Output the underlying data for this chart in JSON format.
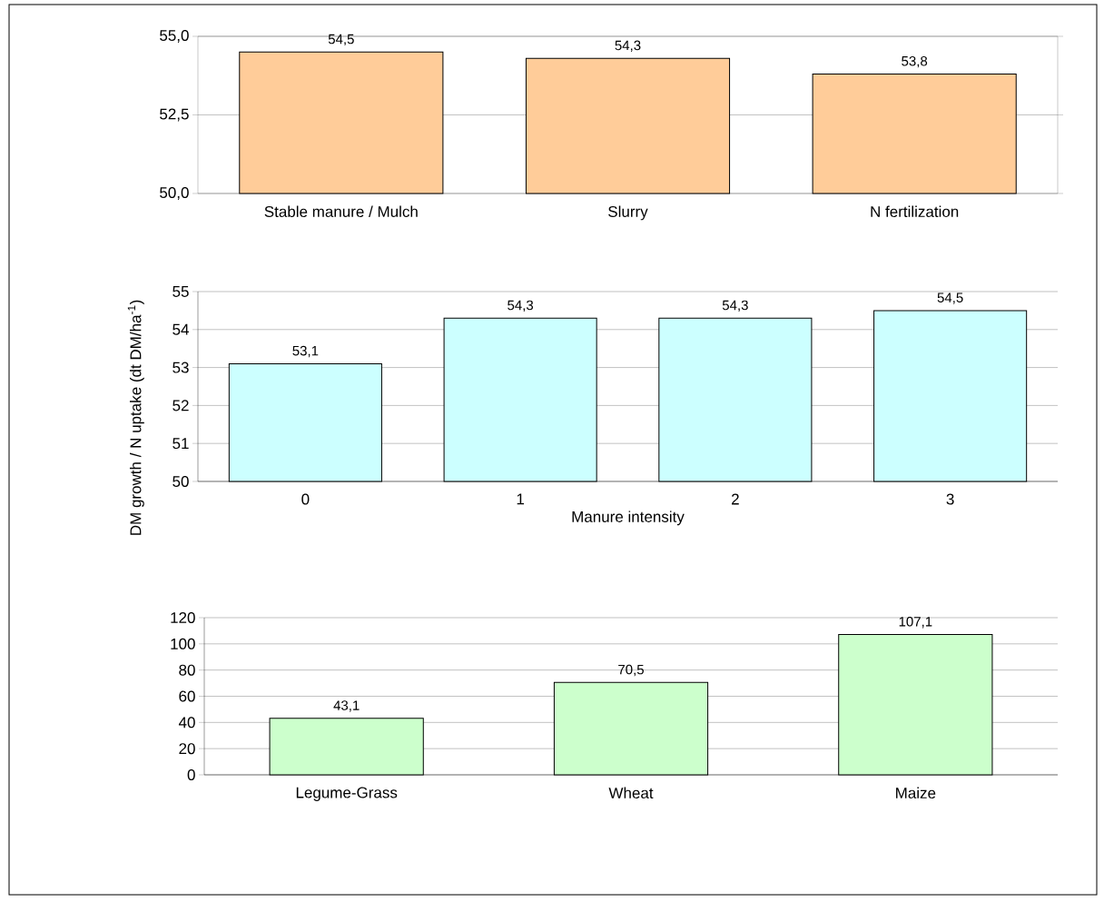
{
  "chart_data": [
    {
      "type": "bar",
      "categories": [
        "Stable manure / Mulch",
        "Slurry",
        "N fertilization"
      ],
      "values": [
        54.5,
        54.3,
        53.8
      ],
      "value_labels": [
        "54,5",
        "54,3",
        "53,8"
      ],
      "color": "#ffcc99",
      "ylim": [
        50,
        55
      ],
      "yticks": [
        {
          "value": 50,
          "label": "50,0"
        },
        {
          "value": 52.5,
          "label": "52,5"
        },
        {
          "value": 55,
          "label": "55,0"
        }
      ],
      "grid": "y"
    },
    {
      "type": "bar",
      "categories": [
        "0",
        "1",
        "2",
        "3"
      ],
      "values": [
        53.1,
        54.3,
        54.3,
        54.5
      ],
      "value_labels": [
        "53,1",
        "54,3",
        "54,3",
        "54,5"
      ],
      "color": "#ccffff",
      "ylim": [
        50,
        55
      ],
      "yticks": [
        50,
        51,
        52,
        53,
        54,
        55
      ],
      "grid": "y",
      "xlabel": "Manure intensity",
      "ylabel": "DM growth / N uptake (dt DM/ha$^{-1}$)"
    },
    {
      "type": "bar",
      "categories": [
        "Legume-Grass",
        "Wheat",
        "Maize"
      ],
      "values": [
        43.1,
        70.5,
        107.1
      ],
      "value_labels": [
        "43,1",
        "70,5",
        "107,1"
      ],
      "color": "#ccffcc",
      "ylim": [
        0,
        120
      ],
      "yticks": [
        0,
        20,
        40,
        60,
        80,
        100,
        120
      ],
      "grid": "y"
    }
  ]
}
